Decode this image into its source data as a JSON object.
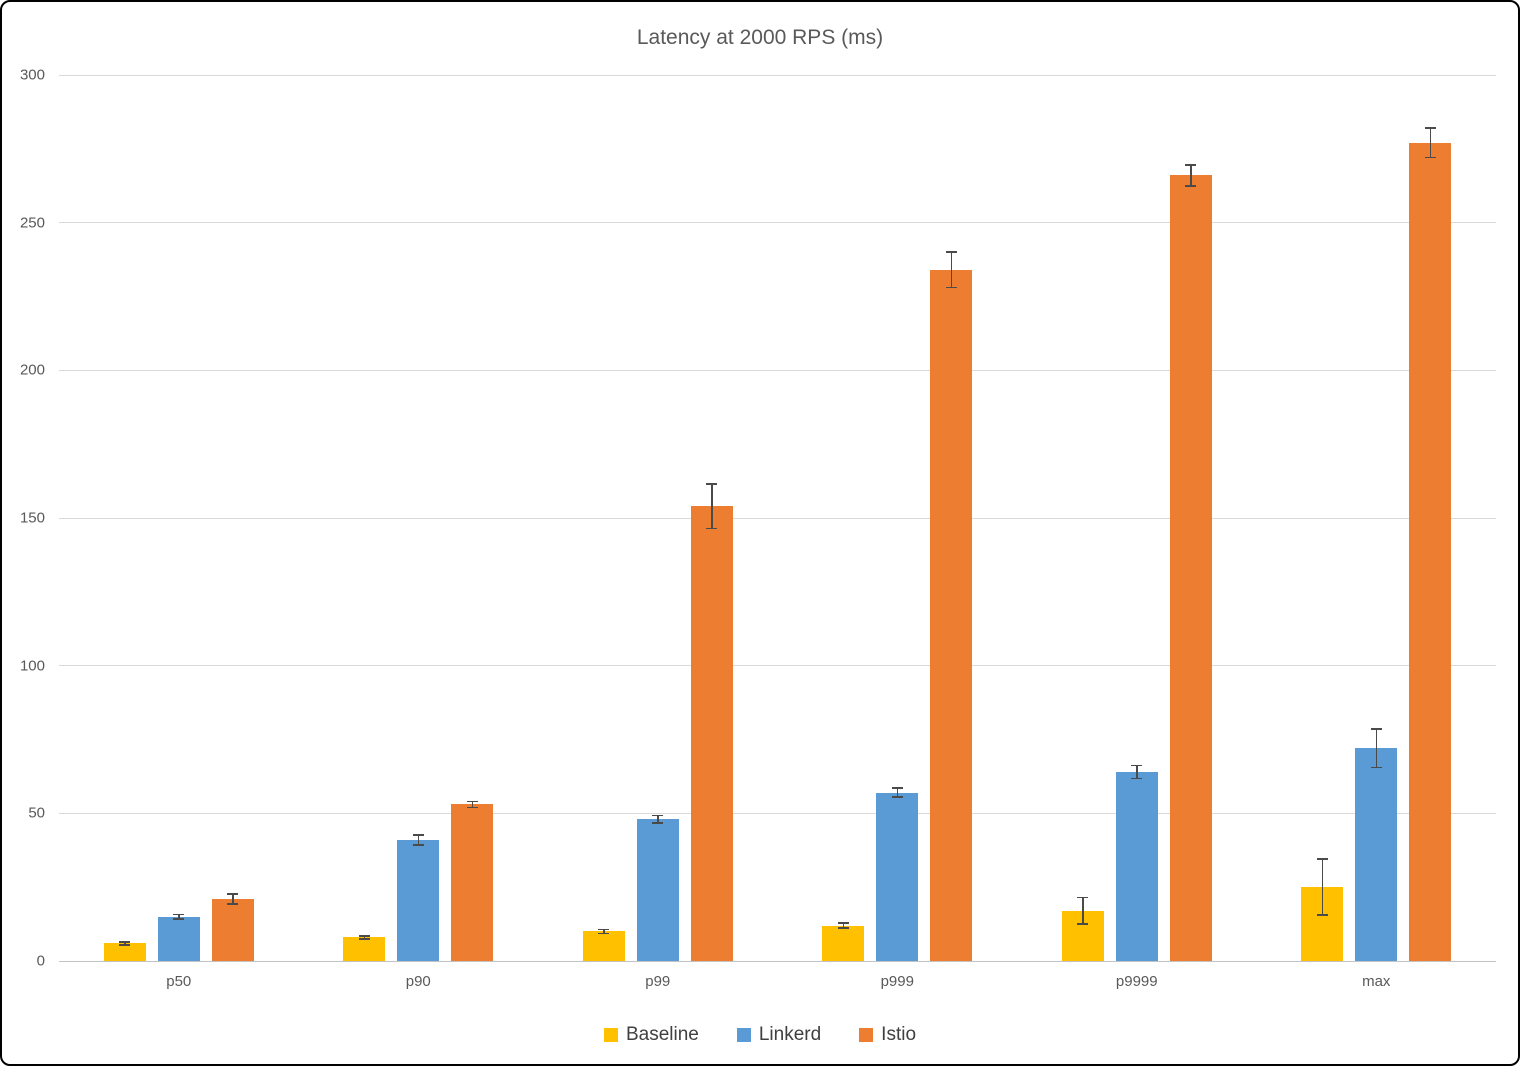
{
  "chart_data": {
    "type": "bar",
    "title": "Latency at 2000 RPS (ms)",
    "categories": [
      "p50",
      "p90",
      "p99",
      "p999",
      "p9999",
      "max"
    ],
    "series": [
      {
        "name": "Baseline",
        "color": "#FFC000",
        "values": [
          6,
          8,
          10,
          12,
          17,
          25
        ],
        "errors": [
          0.5,
          0.5,
          0.7,
          0.8,
          4.5,
          9.5
        ]
      },
      {
        "name": "Linkerd",
        "color": "#5B9BD5",
        "values": [
          15,
          41,
          48,
          57,
          64,
          72
        ],
        "errors": [
          0.8,
          1.7,
          1.2,
          1.5,
          2.2,
          6.5
        ]
      },
      {
        "name": "Istio",
        "color": "#ED7D31",
        "values": [
          21,
          53,
          154,
          234,
          266,
          277
        ],
        "errors": [
          1.7,
          1.0,
          7.5,
          6.0,
          3.5,
          5.0
        ]
      }
    ],
    "ylim": [
      0,
      300
    ],
    "yticks": [
      0,
      50,
      100,
      150,
      200,
      250,
      300
    ],
    "grid": true,
    "error_bars": true,
    "legend_position": "bottom",
    "xlabel": "",
    "ylabel": ""
  },
  "colors": {
    "grid": "#D9D9D9",
    "axis_line": "#C3C3C3",
    "tick_text": "#595959",
    "title_text": "#595959",
    "legend_text": "#404040",
    "error_bar": "#4A4A4A",
    "frame_border": "#000000",
    "background": "#FFFFFF"
  }
}
